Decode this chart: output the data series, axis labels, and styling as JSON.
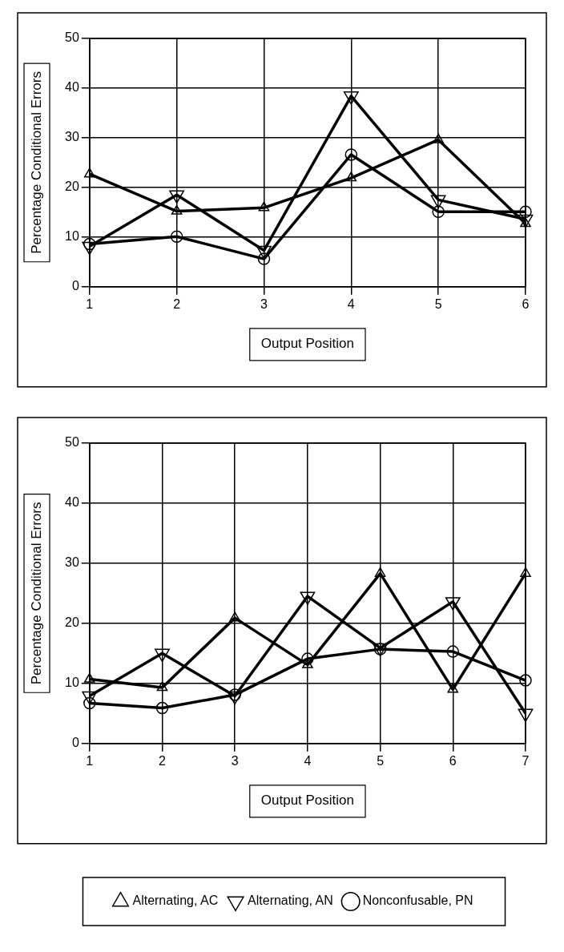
{
  "chart_data": [
    {
      "type": "line",
      "xlabel": "Output Position",
      "ylabel": "Percentage Conditional Errors",
      "x": [
        1,
        2,
        3,
        4,
        5,
        6
      ],
      "xlim": [
        1,
        6
      ],
      "xticks": [
        1,
        2,
        3,
        4,
        5,
        6
      ],
      "ylim": [
        0,
        50
      ],
      "yticks": [
        0,
        10,
        20,
        30,
        40,
        50
      ],
      "grid": true,
      "legend": false,
      "series": [
        {
          "color": "#000000",
          "marker": "triangle",
          "values": [
            22.7,
            15.2,
            15.9,
            21.9,
            29.6,
            12.7
          ]
        },
        {
          "color": "#000000",
          "marker": "triangle-down",
          "values": [
            8.1,
            18.5,
            7.3,
            38.4,
            17.5,
            13.6
          ]
        },
        {
          "color": "#000000",
          "marker": "circle",
          "values": [
            8.6,
            10.1,
            5.6,
            26.6,
            15.1,
            15.1
          ]
        }
      ]
    },
    {
      "type": "line",
      "xlabel": "Output Position",
      "ylabel": "Percentage Conditional Errors",
      "x": [
        1,
        2,
        3,
        4,
        5,
        6,
        7
      ],
      "xlim": [
        1,
        7
      ],
      "xticks": [
        1,
        2,
        3,
        4,
        5,
        6,
        7
      ],
      "ylim": [
        0,
        50
      ],
      "yticks": [
        0,
        10,
        20,
        30,
        40,
        50
      ],
      "grid": true,
      "legend": "bottom",
      "series": [
        {
          "name": "Alternating, AC",
          "color": "#000000",
          "marker": "triangle",
          "values": [
            10.7,
            9.3,
            20.9,
            13.1,
            28.3,
            9.0,
            28.3
          ]
        },
        {
          "name": "Alternating, AN",
          "color": "#000000",
          "marker": "triangle-down",
          "values": [
            7.9,
            15.0,
            7.9,
            24.5,
            15.9,
            23.6,
            5.0
          ]
        },
        {
          "name": "Nonconfusable, PN",
          "color": "#000000",
          "marker": "circle",
          "values": [
            6.7,
            5.9,
            8.1,
            14.1,
            15.7,
            15.3,
            10.5
          ]
        }
      ]
    }
  ]
}
